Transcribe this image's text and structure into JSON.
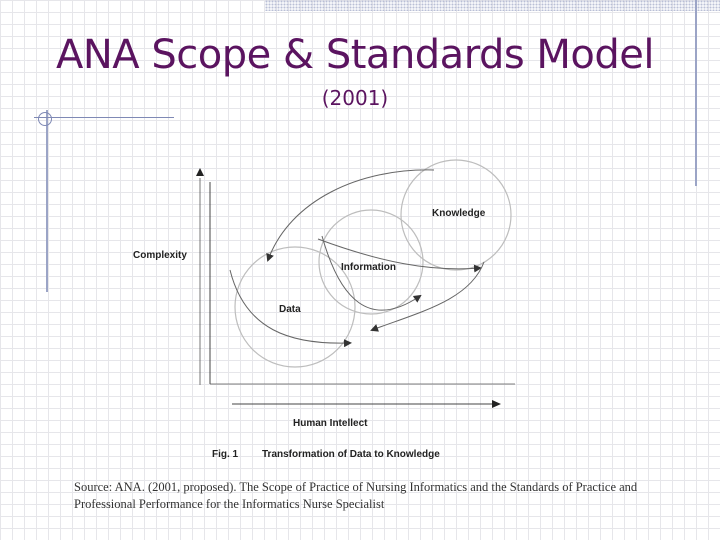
{
  "slide": {
    "title": "ANA Scope & Standards Model",
    "subtitle": "(2001)"
  },
  "figure": {
    "y_axis_label": "Complexity",
    "x_axis_label": "Human Intellect",
    "nodes": [
      "Data",
      "Information",
      "Knowledge"
    ],
    "caption_number": "Fig. 1",
    "caption_text": "Transformation of Data to Knowledge"
  },
  "source_text": "Source: ANA.  (2001, proposed).  The Scope of Practice of Nursing Informatics and the Standards of Practice and Professional Performance for the Informatics Nurse Specialist",
  "colors": {
    "title": "#5b1460",
    "accent_lines": "#9ba4c6"
  }
}
